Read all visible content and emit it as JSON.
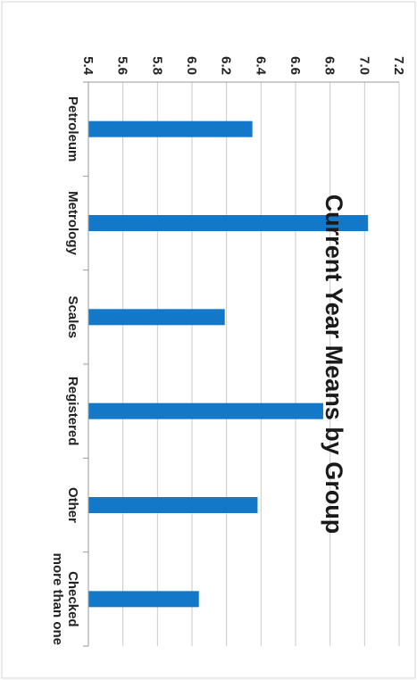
{
  "chart_data": {
    "type": "bar",
    "orientation": "vertical",
    "title": "Current Year Means by Group",
    "categories": [
      "Petroleum",
      "Metrology",
      "Scales",
      "Registered",
      "Other",
      "Checked more than one"
    ],
    "values": [
      6.35,
      7.02,
      6.19,
      6.76,
      6.38,
      6.04
    ],
    "ylim": [
      5.4,
      7.2
    ],
    "yticks": [
      "5.4",
      "5.6",
      "5.8",
      "6.0",
      "6.2",
      "6.4",
      "6.6",
      "6.8",
      "7.0",
      "7.2"
    ],
    "xlabel": "",
    "ylabel": "",
    "grid": true,
    "legend": "none",
    "bar_color": "#1478c8"
  }
}
